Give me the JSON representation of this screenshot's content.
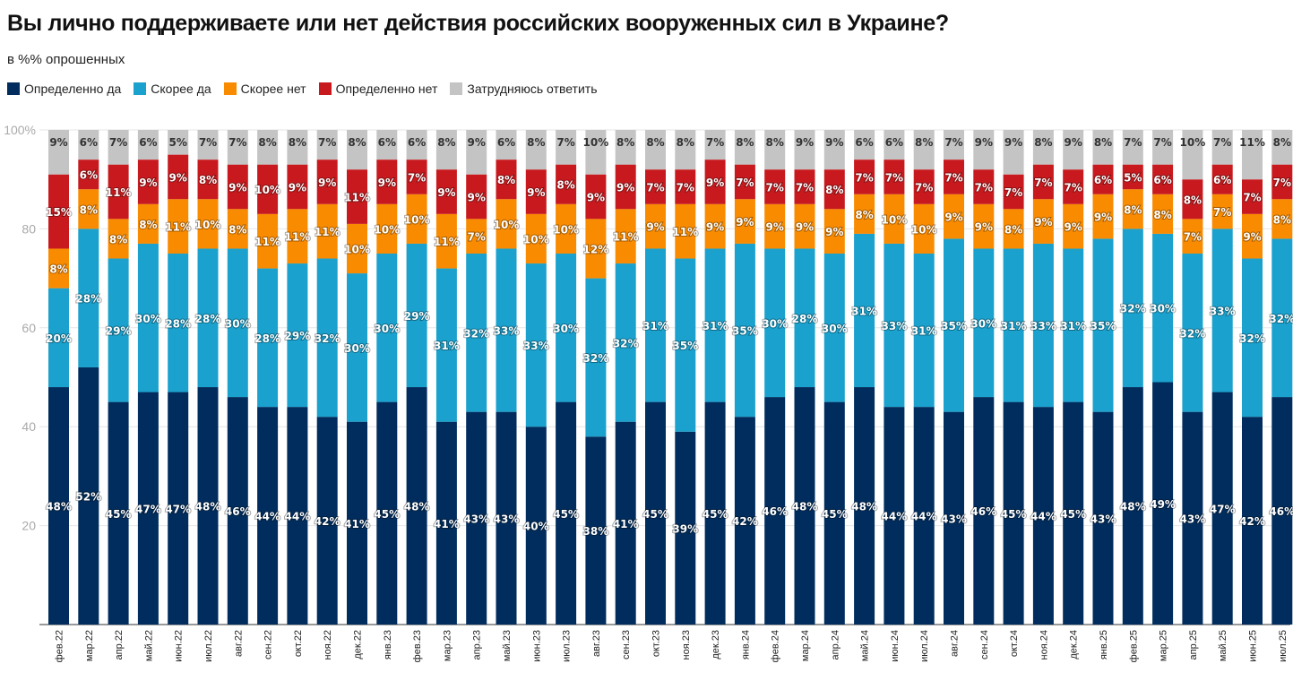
{
  "chart_data": {
    "type": "bar",
    "stacked": true,
    "title": "Вы лично поддерживаете или нет действия российских вооруженных сил в Украине?",
    "subtitle": "в %% опрошенных",
    "ylim": [
      0,
      100
    ],
    "yticks": [
      "20",
      "40",
      "60",
      "80",
      "100%"
    ],
    "ytick_values": [
      20,
      40,
      60,
      80,
      100
    ],
    "grid": true,
    "legend_position": "top-left",
    "categories": [
      "фев.22",
      "мар.22",
      "апр.22",
      "май.22",
      "июн.22",
      "июл.22",
      "авг.22",
      "сен.22",
      "окт.22",
      "ноя.22",
      "дек.22",
      "янв.23",
      "фев.23",
      "мар.23",
      "апр.23",
      "май.23",
      "июн.23",
      "июл.23",
      "авг.23",
      "сен.23",
      "окт.23",
      "ноя.23",
      "дек.23",
      "янв.24",
      "фев.24",
      "мар.24",
      "апр.24",
      "май.24",
      "июн.24",
      "июл.24",
      "авг.24",
      "сен.24",
      "окт.24",
      "ноя.24",
      "дек.24",
      "янв.25",
      "фев.25",
      "мар.25",
      "апр.25",
      "май.25",
      "июн.25",
      "июл.25"
    ],
    "series": [
      {
        "name": "Определенно да",
        "color": "#002d5e",
        "values": [
          48,
          52,
          45,
          47,
          47,
          48,
          46,
          44,
          44,
          42,
          41,
          45,
          48,
          41,
          43,
          43,
          40,
          45,
          38,
          41,
          45,
          39,
          45,
          42,
          46,
          48,
          45,
          48,
          44,
          44,
          43,
          46,
          45,
          44,
          45,
          43,
          48,
          49,
          43,
          47,
          42,
          46
        ]
      },
      {
        "name": "Скорее да",
        "color": "#1aa1cd",
        "values": [
          20,
          28,
          29,
          30,
          28,
          28,
          30,
          28,
          29,
          32,
          30,
          30,
          29,
          31,
          32,
          33,
          33,
          30,
          32,
          32,
          31,
          35,
          31,
          35,
          30,
          28,
          30,
          31,
          33,
          31,
          35,
          30,
          31,
          33,
          31,
          35,
          32,
          30,
          32,
          33,
          32,
          32
        ]
      },
      {
        "name": "Скорее нет",
        "color": "#f98b00",
        "values": [
          8,
          8,
          8,
          8,
          11,
          10,
          8,
          11,
          11,
          11,
          10,
          10,
          10,
          11,
          7,
          10,
          10,
          10,
          12,
          11,
          9,
          11,
          9,
          9,
          9,
          9,
          9,
          8,
          10,
          10,
          9,
          9,
          8,
          9,
          9,
          9,
          8,
          8,
          7,
          7,
          9,
          8
        ]
      },
      {
        "name": "Определенно нет",
        "color": "#c81a1e",
        "values": [
          15,
          6,
          11,
          9,
          9,
          8,
          9,
          10,
          9,
          9,
          11,
          9,
          7,
          9,
          9,
          8,
          9,
          8,
          9,
          9,
          7,
          7,
          9,
          7,
          7,
          7,
          8,
          7,
          7,
          7,
          7,
          7,
          7,
          7,
          7,
          6,
          5,
          6,
          8,
          6,
          7,
          7
        ]
      },
      {
        "name": "Затрудняюсь ответить",
        "color": "#c4c4c4",
        "values": [
          9,
          6,
          7,
          6,
          5,
          7,
          7,
          8,
          8,
          7,
          8,
          6,
          6,
          8,
          9,
          6,
          8,
          7,
          10,
          8,
          8,
          8,
          7,
          8,
          8,
          9,
          9,
          6,
          6,
          8,
          7,
          9,
          9,
          8,
          9,
          8,
          7,
          7,
          10,
          7,
          11,
          8
        ]
      }
    ]
  }
}
